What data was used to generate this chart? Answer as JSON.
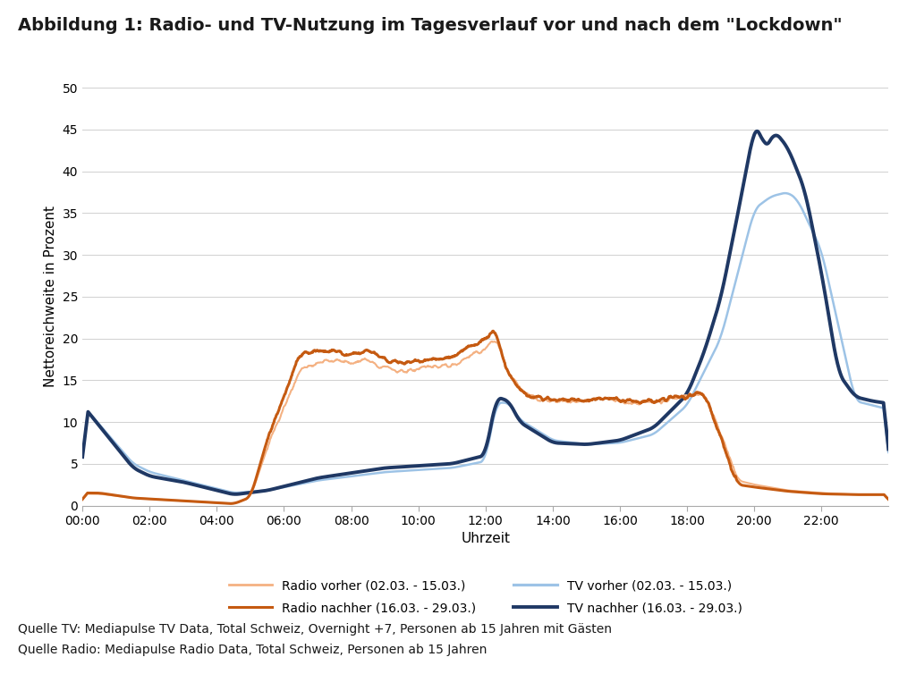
{
  "title": "Abbildung 1: Radio- und TV-Nutzung im Tagesverlauf vor und nach dem \"Lockdown\"",
  "xlabel": "Uhrzeit",
  "ylabel": "Nettoreichweite in Prozent",
  "source1": "Quelle TV: Mediapulse TV Data, Total Schweiz, Overnight +7, Personen ab 15 Jahren mit Gästen",
  "source2": "Quelle Radio: Mediapulse Radio Data, Total Schweiz, Personen ab 15 Jahren",
  "legend": [
    "Radio vorher (02.03. - 15.03.)",
    "Radio nachher (16.03. - 29.03.)",
    "TV vorher (02.03. - 15.03.)",
    "TV nachher (16.03. - 29.03.)"
  ],
  "colors": {
    "radio_before": "#f4b182",
    "radio_after": "#c55a11",
    "tv_before": "#9dc3e6",
    "tv_after": "#1f3864"
  },
  "linewidths": {
    "radio_before": 1.5,
    "radio_after": 2.2,
    "tv_before": 1.8,
    "tv_after": 2.8
  },
  "ylim": [
    0,
    50
  ],
  "yticks": [
    0,
    5,
    10,
    15,
    20,
    25,
    30,
    35,
    40,
    45,
    50
  ],
  "xlim": [
    0,
    24
  ],
  "xticks": [
    0,
    2,
    4,
    6,
    8,
    10,
    12,
    14,
    16,
    18,
    20,
    22
  ],
  "xtick_labels": [
    "00:00",
    "02:00",
    "04:00",
    "06:00",
    "08:00",
    "10:00",
    "12:00",
    "14:00",
    "16:00",
    "18:00",
    "20:00",
    "22:00"
  ],
  "background_color": "#ffffff",
  "title_fontsize": 14,
  "axis_fontsize": 11,
  "tick_fontsize": 10,
  "source_fontsize": 10,
  "legend_fontsize": 10
}
